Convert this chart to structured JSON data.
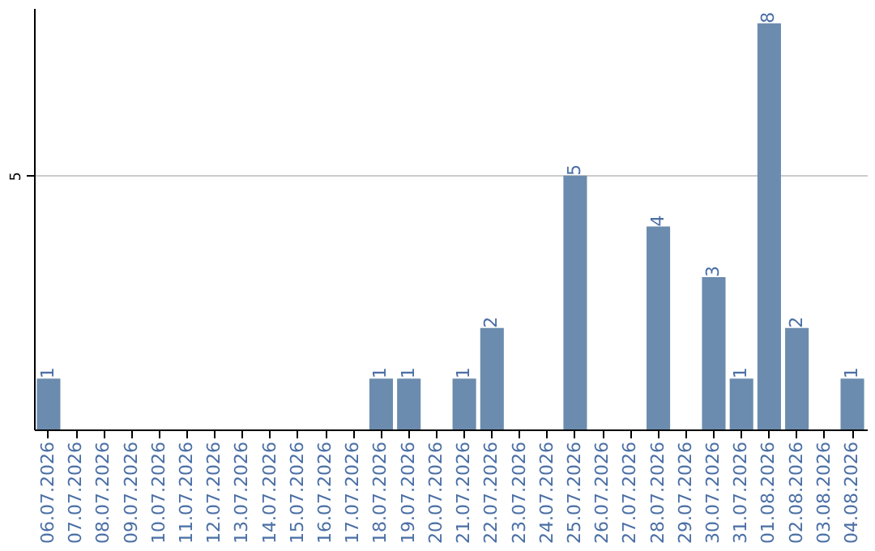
{
  "chart_data": {
    "type": "bar",
    "categories": [
      "06.07.2026",
      "07.07.2026",
      "08.07.2026",
      "09.07.2026",
      "10.07.2026",
      "11.07.2026",
      "12.07.2026",
      "13.07.2026",
      "14.07.2026",
      "15.07.2026",
      "16.07.2026",
      "17.07.2026",
      "18.07.2026",
      "19.07.2026",
      "20.07.2026",
      "21.07.2026",
      "22.07.2026",
      "23.07.2026",
      "24.07.2026",
      "25.07.2026",
      "26.07.2026",
      "27.07.2026",
      "28.07.2026",
      "29.07.2026",
      "30.07.2026",
      "31.07.2026",
      "01.08.2026",
      "02.08.2026",
      "03.08.2026",
      "04.08.2026"
    ],
    "values": [
      1,
      0,
      0,
      0,
      0,
      0,
      0,
      0,
      0,
      0,
      0,
      0,
      1,
      1,
      0,
      1,
      2,
      0,
      0,
      5,
      0,
      0,
      4,
      0,
      3,
      1,
      8,
      2,
      0,
      1
    ],
    "value_labels": [
      "1",
      null,
      null,
      null,
      null,
      null,
      null,
      null,
      null,
      null,
      null,
      null,
      "1",
      "1",
      null,
      "1",
      "2",
      null,
      null,
      "5",
      null,
      null,
      "4",
      null,
      "3",
      "1",
      "8",
      "2",
      null,
      "1"
    ],
    "color": "#6b8cae",
    "ylim": [
      0,
      8.3
    ],
    "yticks": [
      5
    ],
    "grid": "y"
  }
}
